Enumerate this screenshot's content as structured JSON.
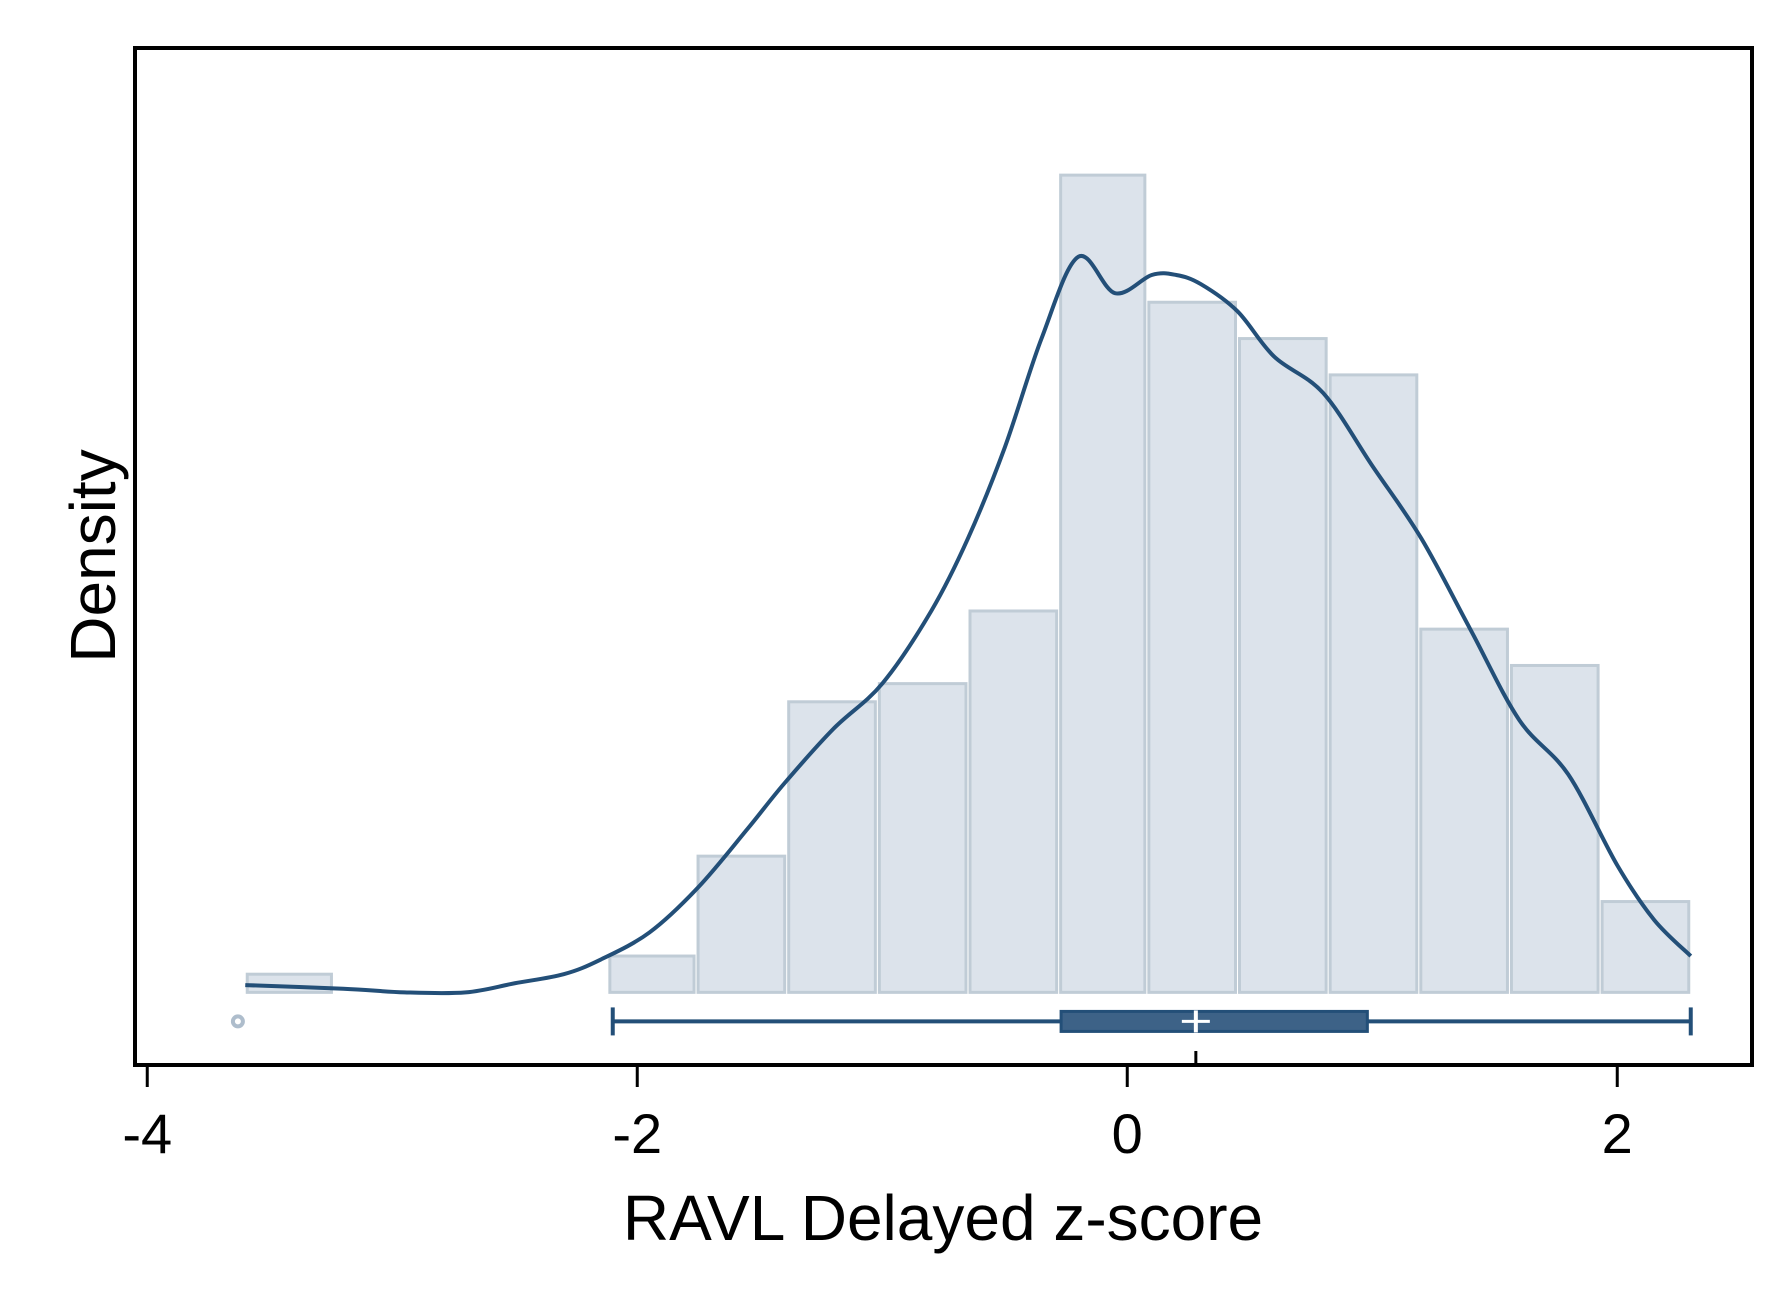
{
  "chart_data": {
    "type": "bar",
    "xlabel": "RAVL Delayed z-score",
    "ylabel": "Density",
    "xlim": [
      -4.05,
      2.55
    ],
    "ylim": [
      -0.04,
      0.52
    ],
    "x_ticks": [
      "-4",
      "-2",
      "0",
      "2"
    ],
    "x_tick_values": [
      -4,
      -2,
      0,
      2
    ],
    "grid": false,
    "histogram": {
      "bins": [
        {
          "x0": -3.6,
          "x1": -3.24,
          "density": 0.01
        },
        {
          "x0": -2.12,
          "x1": -1.76,
          "density": 0.02
        },
        {
          "x0": -1.76,
          "x1": -1.39,
          "density": 0.075
        },
        {
          "x0": -1.39,
          "x1": -1.02,
          "density": 0.16
        },
        {
          "x0": -1.02,
          "x1": -0.65,
          "density": 0.17
        },
        {
          "x0": -0.65,
          "x1": -0.28,
          "density": 0.21
        },
        {
          "x0": -0.28,
          "x1": 0.08,
          "density": 0.45
        },
        {
          "x0": 0.08,
          "x1": 0.45,
          "density": 0.38
        },
        {
          "x0": 0.45,
          "x1": 0.82,
          "density": 0.36
        },
        {
          "x0": 0.82,
          "x1": 1.19,
          "density": 0.34
        },
        {
          "x0": 1.19,
          "x1": 1.56,
          "density": 0.2
        },
        {
          "x0": 1.56,
          "x1": 1.93,
          "density": 0.18
        },
        {
          "x0": 1.93,
          "x1": 2.3,
          "density": 0.05
        }
      ]
    },
    "kde": {
      "x": [
        -3.6,
        -3.2,
        -2.95,
        -2.7,
        -2.5,
        -2.3,
        -2.15,
        -1.95,
        -1.75,
        -1.55,
        -1.4,
        -1.2,
        -1.0,
        -0.8,
        -0.65,
        -0.5,
        -0.35,
        -0.2,
        -0.05,
        0.1,
        0.2,
        0.3,
        0.45,
        0.6,
        0.8,
        1.0,
        1.2,
        1.4,
        1.6,
        1.8,
        2.0,
        2.15,
        2.3
      ],
      "y": [
        0.004,
        0.002,
        0.0,
        0.0,
        0.005,
        0.01,
        0.018,
        0.033,
        0.058,
        0.09,
        0.115,
        0.145,
        0.17,
        0.21,
        0.25,
        0.3,
        0.36,
        0.405,
        0.385,
        0.395,
        0.395,
        0.39,
        0.375,
        0.35,
        0.33,
        0.29,
        0.25,
        0.2,
        0.15,
        0.12,
        0.07,
        0.04,
        0.02
      ]
    },
    "boxplot": {
      "whisker_low": -2.1,
      "q1": -0.27,
      "median": 0.28,
      "mean": 0.28,
      "q3": 0.98,
      "whisker_high": 2.3,
      "outliers": [
        -3.63
      ]
    },
    "colors": {
      "bar_fill": "#dce3eb",
      "bar_stroke": "#c0ccd6",
      "line": "#234f78",
      "box_fill": "#3d6287",
      "outlier": "#aebdcc",
      "axis": "#000000"
    }
  }
}
